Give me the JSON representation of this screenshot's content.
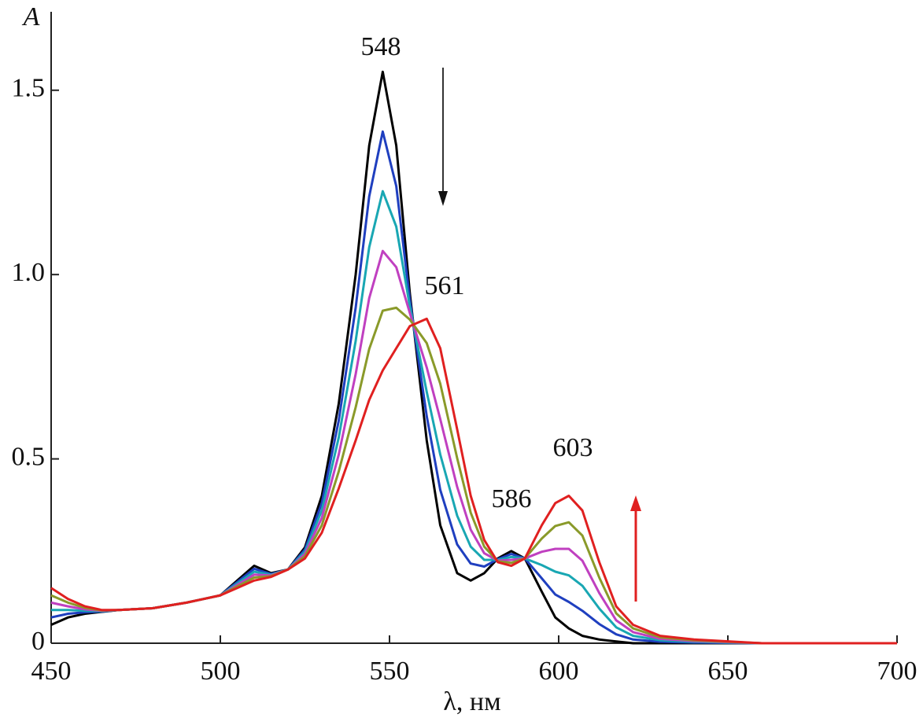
{
  "chart_data": {
    "type": "line",
    "ylabel": "A",
    "xlabel": "λ, нм",
    "annotations": [
      "548",
      "561",
      "586",
      "603"
    ],
    "x": [
      450,
      455,
      460,
      465,
      470,
      480,
      490,
      500,
      505,
      510,
      515,
      520,
      525,
      530,
      535,
      540,
      544,
      548,
      552,
      556,
      561,
      565,
      570,
      574,
      578,
      582,
      586,
      590,
      595,
      599,
      603,
      607,
      612,
      617,
      622,
      630,
      640,
      660,
      700
    ],
    "series": [
      {
        "color": "#000000",
        "values": [
          0.05,
          0.07,
          0.08,
          0.085,
          0.09,
          0.095,
          0.11,
          0.13,
          0.17,
          0.21,
          0.19,
          0.2,
          0.26,
          0.4,
          0.65,
          1.0,
          1.35,
          1.55,
          1.35,
          0.95,
          0.55,
          0.32,
          0.19,
          0.17,
          0.19,
          0.23,
          0.25,
          0.23,
          0.14,
          0.07,
          0.04,
          0.02,
          0.01,
          0.005,
          0,
          0,
          0,
          0,
          0
        ]
      },
      {
        "color": "#1f3fbf",
        "values": [
          0.07,
          0.08,
          0.084,
          0.086,
          0.09,
          0.095,
          0.11,
          0.13,
          0.166,
          0.202,
          0.188,
          0.2,
          0.254,
          0.38,
          0.604,
          0.91,
          1.212,
          1.388,
          1.24,
          0.932,
          0.616,
          0.416,
          0.268,
          0.216,
          0.208,
          0.228,
          0.242,
          0.23,
          0.176,
          0.132,
          0.112,
          0.088,
          0.052,
          0.024,
          0.01,
          0.004,
          0.002,
          0,
          0
        ]
      },
      {
        "color": "#19a7b3",
        "values": [
          0.09,
          0.09,
          0.088,
          0.087,
          0.09,
          0.095,
          0.11,
          0.13,
          0.162,
          0.194,
          0.186,
          0.2,
          0.248,
          0.36,
          0.558,
          0.82,
          1.074,
          1.226,
          1.13,
          0.914,
          0.682,
          0.512,
          0.346,
          0.262,
          0.226,
          0.226,
          0.234,
          0.23,
          0.212,
          0.194,
          0.184,
          0.156,
          0.094,
          0.043,
          0.02,
          0.008,
          0.004,
          0,
          0
        ]
      },
      {
        "color": "#c040c0",
        "values": [
          0.11,
          0.1,
          0.092,
          0.088,
          0.09,
          0.095,
          0.11,
          0.13,
          0.158,
          0.186,
          0.184,
          0.2,
          0.242,
          0.34,
          0.512,
          0.73,
          0.936,
          1.064,
          1.02,
          0.896,
          0.748,
          0.608,
          0.424,
          0.308,
          0.244,
          0.224,
          0.226,
          0.23,
          0.248,
          0.256,
          0.256,
          0.224,
          0.136,
          0.062,
          0.03,
          0.012,
          0.006,
          0,
          0
        ]
      },
      {
        "color": "#8a9a2a",
        "values": [
          0.13,
          0.11,
          0.096,
          0.089,
          0.09,
          0.095,
          0.11,
          0.13,
          0.154,
          0.178,
          0.182,
          0.2,
          0.236,
          0.32,
          0.466,
          0.64,
          0.798,
          0.902,
          0.91,
          0.878,
          0.814,
          0.704,
          0.502,
          0.354,
          0.262,
          0.222,
          0.218,
          0.23,
          0.284,
          0.318,
          0.328,
          0.292,
          0.178,
          0.081,
          0.04,
          0.016,
          0.008,
          0,
          0
        ]
      },
      {
        "color": "#e02020",
        "values": [
          0.15,
          0.12,
          0.1,
          0.09,
          0.09,
          0.095,
          0.11,
          0.13,
          0.15,
          0.17,
          0.18,
          0.2,
          0.23,
          0.3,
          0.42,
          0.55,
          0.66,
          0.74,
          0.8,
          0.86,
          0.88,
          0.8,
          0.58,
          0.4,
          0.28,
          0.22,
          0.21,
          0.23,
          0.32,
          0.38,
          0.4,
          0.36,
          0.22,
          0.1,
          0.05,
          0.02,
          0.01,
          0,
          0
        ]
      }
    ],
    "xlim": [
      450,
      700
    ],
    "xticks": [
      450,
      500,
      550,
      600,
      650,
      700
    ],
    "ylim": [
      0,
      1.7
    ],
    "yticks": [
      0,
      0.5,
      {
        "value": 1,
        "label": "1.0"
      },
      1.5
    ]
  }
}
